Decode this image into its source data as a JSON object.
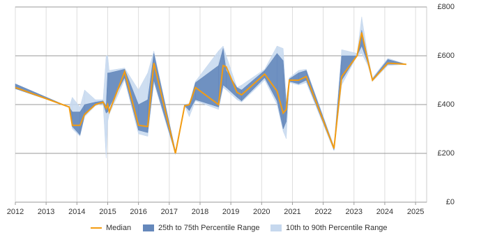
{
  "chart_data": {
    "type": "range-line",
    "x": [
      2012.0,
      2013.75,
      2013.85,
      2014.1,
      2014.25,
      2014.6,
      2014.85,
      2014.95,
      2015.0,
      2015.05,
      2015.55,
      2016.0,
      2016.3,
      2016.5,
      2017.2,
      2017.5,
      2017.65,
      2017.85,
      2018.6,
      2018.75,
      2018.85,
      2019.2,
      2019.35,
      2020.1,
      2020.5,
      2020.7,
      2020.8,
      2020.9,
      2021.2,
      2021.45,
      2022.35,
      2022.6,
      2023.1,
      2023.25,
      2023.45,
      2023.6,
      2024.1,
      2024.7
    ],
    "series": [
      {
        "name": "Median",
        "color": "#f39c12",
        "values": [
          470,
          390,
          315,
          315,
          360,
          400,
          410,
          385,
          400,
          370,
          535,
          315,
          310,
          570,
          200,
          395,
          400,
          470,
          400,
          560,
          555,
          450,
          440,
          525,
          455,
          365,
          380,
          500,
          500,
          515,
          220,
          515,
          600,
          695,
          580,
          500,
          570,
          565
        ]
      },
      {
        "name": "25th to 75th Percentile Range",
        "color": "#6588bb",
        "low": [
          465,
          390,
          310,
          275,
          355,
          400,
          405,
          365,
          370,
          390,
          510,
          295,
          285,
          500,
          200,
          395,
          375,
          420,
          390,
          480,
          470,
          430,
          415,
          510,
          415,
          300,
          330,
          495,
          485,
          500,
          215,
          500,
          600,
          640,
          570,
          500,
          565,
          565
        ],
        "high": [
          485,
          390,
          370,
          370,
          400,
          410,
          415,
          395,
          530,
          530,
          545,
          400,
          420,
          610,
          210,
          400,
          400,
          490,
          560,
          630,
          540,
          470,
          460,
          540,
          610,
          580,
          400,
          505,
          530,
          540,
          225,
          600,
          600,
          705,
          590,
          505,
          585,
          565
        ]
      },
      {
        "name": "10th to 90th Percentile Range",
        "color": "#c6d8ee",
        "low": [
          465,
          390,
          300,
          270,
          350,
          395,
          405,
          180,
          330,
          360,
          500,
          280,
          270,
          490,
          195,
          395,
          350,
          415,
          380,
          470,
          460,
          420,
          410,
          500,
          400,
          290,
          260,
          490,
          480,
          490,
          210,
          480,
          600,
          610,
          560,
          495,
          560,
          565
        ],
        "high": [
          485,
          390,
          430,
          390,
          460,
          420,
          420,
          600,
          600,
          540,
          550,
          460,
          530,
          620,
          210,
          400,
          405,
          495,
          620,
          640,
          600,
          470,
          480,
          545,
          640,
          630,
          420,
          510,
          540,
          545,
          230,
          625,
          610,
          760,
          600,
          510,
          590,
          565
        ]
      }
    ],
    "xlim": [
      2012,
      2025.36
    ],
    "xticks": [
      2012,
      2013,
      2014,
      2015,
      2016,
      2017,
      2018,
      2019,
      2020,
      2021,
      2022,
      2023,
      2024,
      2025
    ],
    "ylim": [
      0,
      800
    ],
    "yticks": [
      {
        "value": 0,
        "label": "£0"
      },
      {
        "value": 200,
        "label": "£200"
      },
      {
        "value": 400,
        "label": "£400"
      },
      {
        "value": 600,
        "label": "£600"
      },
      {
        "value": 800,
        "label": "£800"
      }
    ],
    "grid": true,
    "legend": "bottom"
  }
}
